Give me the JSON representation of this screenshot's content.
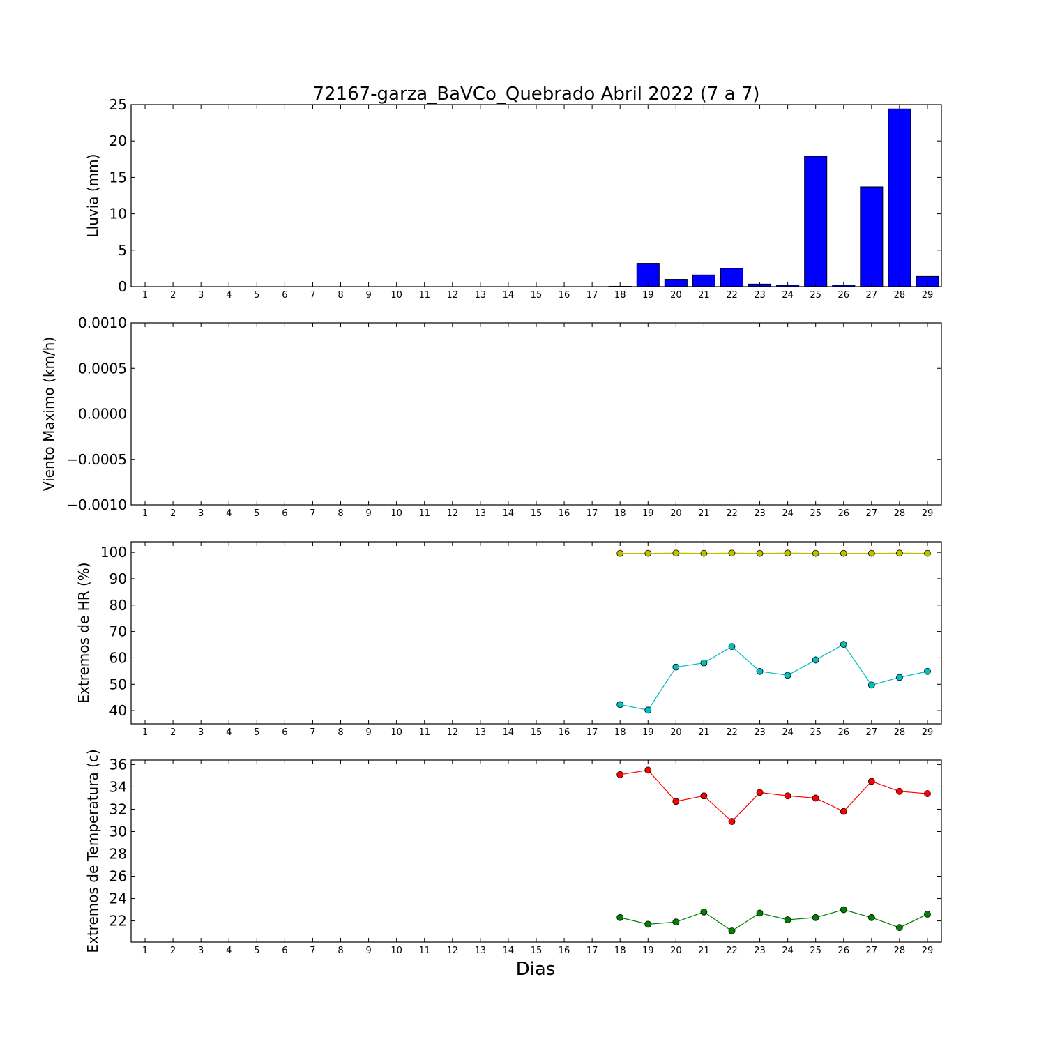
{
  "figure": {
    "title": "72167-garza_BaVCo_Quebrado Abril 2022  (7 a 7)",
    "xlabel": "Dias"
  },
  "chart_data": [
    {
      "type": "bar",
      "ylabel": "Lluvia (mm)",
      "ylim": [
        0,
        25
      ],
      "yticks": [
        "0",
        "5",
        "10",
        "15",
        "20",
        "25"
      ],
      "ytick_values": [
        0,
        5,
        10,
        15,
        20,
        25
      ],
      "categories": [
        1,
        2,
        3,
        4,
        5,
        6,
        7,
        8,
        9,
        10,
        11,
        12,
        13,
        14,
        15,
        16,
        17,
        18,
        19,
        20,
        21,
        22,
        23,
        24,
        25,
        26,
        27,
        28,
        29
      ],
      "values": [
        0,
        0,
        0,
        0,
        0,
        0,
        0,
        0,
        0,
        0,
        0,
        0,
        0,
        0,
        0,
        0,
        0,
        0.05,
        3.2,
        1.0,
        1.6,
        2.5,
        0.35,
        0.2,
        17.9,
        0.2,
        13.7,
        24.4,
        1.4
      ],
      "color": "#0000ff",
      "grid": false
    },
    {
      "type": "line",
      "ylabel": "Viento Maximo (km/h)",
      "ylim": [
        -0.001,
        0.001
      ],
      "yticks": [
        "−0.0010",
        "−0.0005",
        "0.0000",
        "0.0005",
        "0.0010"
      ],
      "ytick_values": [
        -0.001,
        -0.0005,
        0,
        0.0005,
        0.001
      ],
      "categories": [
        1,
        2,
        3,
        4,
        5,
        6,
        7,
        8,
        9,
        10,
        11,
        12,
        13,
        14,
        15,
        16,
        17,
        18,
        19,
        20,
        21,
        22,
        23,
        24,
        25,
        26,
        27,
        28,
        29
      ],
      "series": [],
      "grid": false
    },
    {
      "type": "line",
      "ylabel": "Extremos de HR (%)",
      "ylim": [
        35,
        104
      ],
      "yticks": [
        "40",
        "50",
        "60",
        "70",
        "80",
        "90",
        "100"
      ],
      "ytick_values": [
        40,
        50,
        60,
        70,
        80,
        90,
        100
      ],
      "categories": [
        1,
        2,
        3,
        4,
        5,
        6,
        7,
        8,
        9,
        10,
        11,
        12,
        13,
        14,
        15,
        16,
        17,
        18,
        19,
        20,
        21,
        22,
        23,
        24,
        25,
        26,
        27,
        28,
        29
      ],
      "series": [
        {
          "color": "#bfbf00",
          "x": [
            18,
            19,
            20,
            21,
            22,
            23,
            24,
            25,
            26,
            27,
            28,
            29
          ],
          "values": [
            99.6,
            99.6,
            99.7,
            99.6,
            99.7,
            99.6,
            99.7,
            99.6,
            99.6,
            99.6,
            99.7,
            99.6
          ]
        },
        {
          "color": "#00bfbf",
          "x": [
            18,
            19,
            20,
            21,
            22,
            23,
            24,
            25,
            26,
            27,
            28,
            29
          ],
          "values": [
            42.3,
            40.2,
            56.5,
            58.1,
            64.3,
            54.9,
            53.4,
            59.2,
            65.1,
            49.7,
            52.6,
            54.9
          ]
        }
      ],
      "grid": false
    },
    {
      "type": "line",
      "ylabel": "Extremos de Temperatura (c)",
      "ylim": [
        20.1,
        36.4
      ],
      "yticks": [
        "22",
        "24",
        "26",
        "28",
        "30",
        "32",
        "34",
        "36"
      ],
      "ytick_values": [
        22,
        24,
        26,
        28,
        30,
        32,
        34,
        36
      ],
      "categories": [
        1,
        2,
        3,
        4,
        5,
        6,
        7,
        8,
        9,
        10,
        11,
        12,
        13,
        14,
        15,
        16,
        17,
        18,
        19,
        20,
        21,
        22,
        23,
        24,
        25,
        26,
        27,
        28,
        29
      ],
      "series": [
        {
          "color": "#ff0000",
          "x": [
            18,
            19,
            20,
            21,
            22,
            23,
            24,
            25,
            26,
            27,
            28,
            29
          ],
          "values": [
            35.1,
            35.5,
            32.7,
            33.2,
            30.9,
            33.5,
            33.2,
            33.0,
            31.8,
            34.5,
            33.6,
            33.4
          ]
        },
        {
          "color": "#008000",
          "x": [
            18,
            19,
            20,
            21,
            22,
            23,
            24,
            25,
            26,
            27,
            28,
            29
          ],
          "values": [
            22.3,
            21.7,
            21.9,
            22.8,
            21.1,
            22.7,
            22.1,
            22.3,
            23.0,
            22.3,
            21.4,
            22.6
          ]
        }
      ],
      "grid": false
    }
  ]
}
